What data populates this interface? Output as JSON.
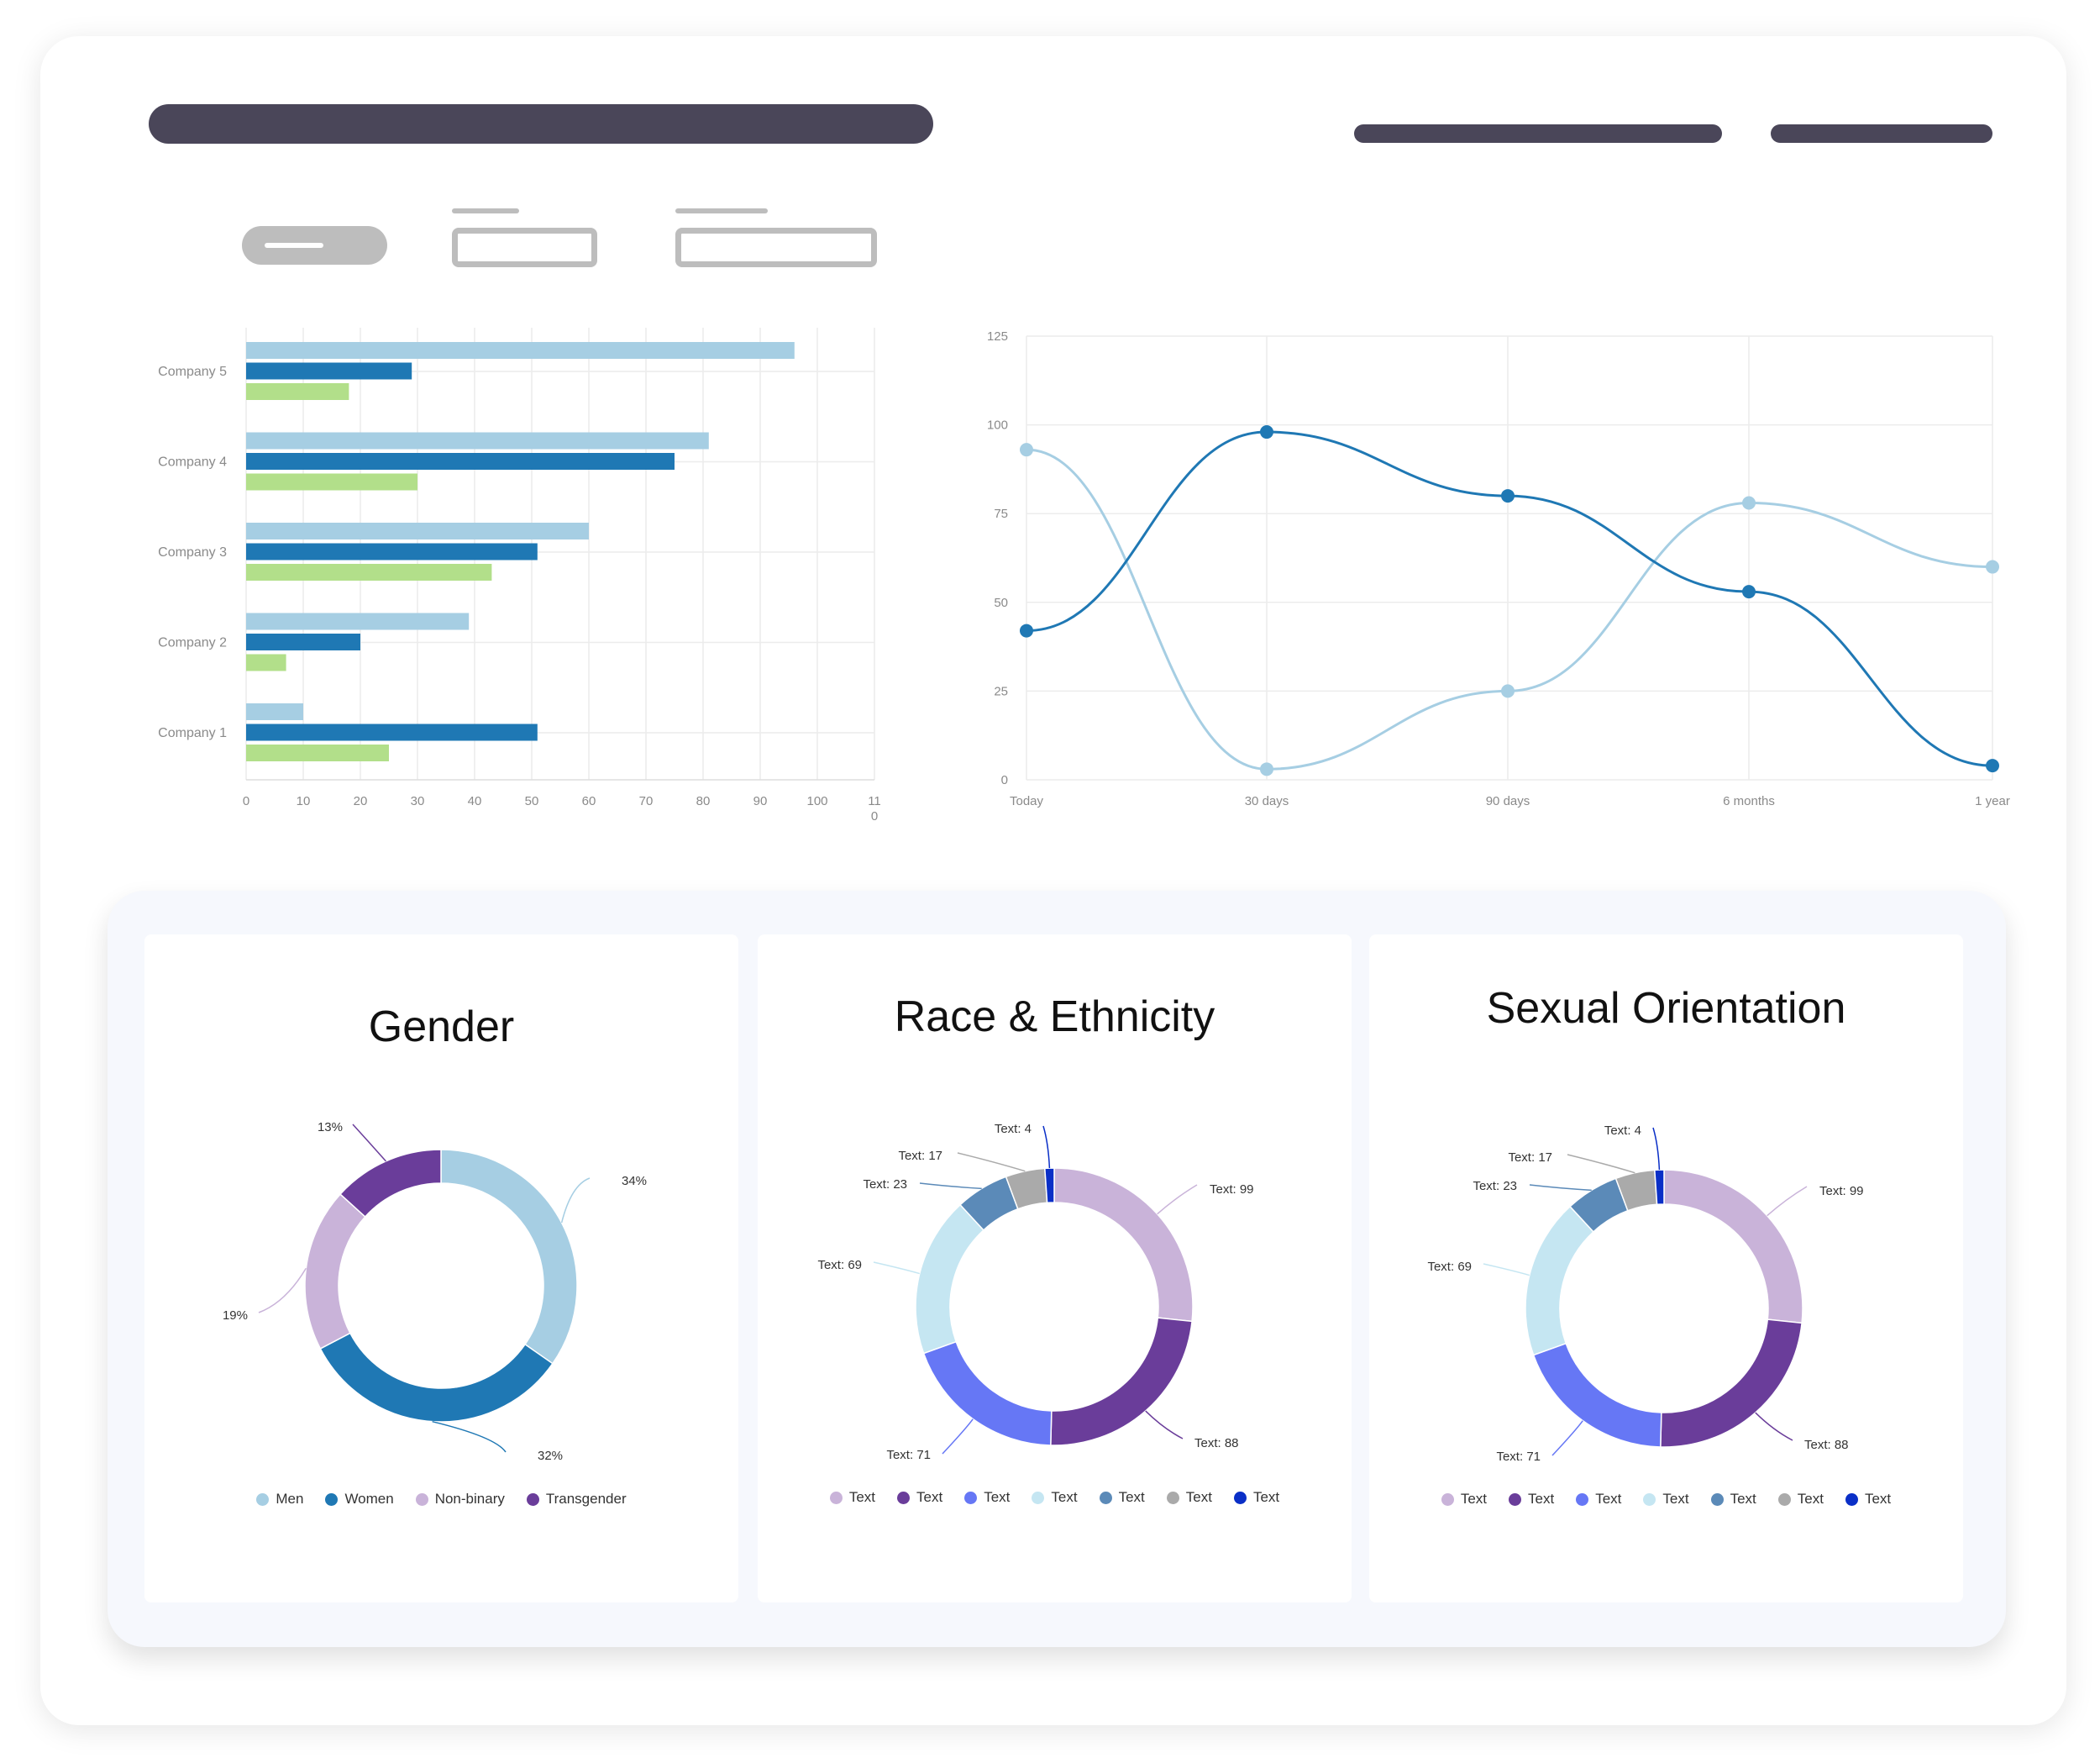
{
  "charts": {
    "bar_chart": {
      "type": "bar",
      "orientation": "horizontal",
      "categories": [
        "Company 5",
        "Company 4",
        "Company 3",
        "Company 2",
        "Company 1"
      ],
      "series": [
        {
          "color": "#a6cee3",
          "values": [
            96,
            81,
            60,
            39,
            10
          ]
        },
        {
          "color": "#1f78b4",
          "values": [
            29,
            75,
            51,
            20,
            51
          ]
        },
        {
          "color": "#b2df8a",
          "values": [
            18,
            30,
            43,
            7,
            25
          ]
        }
      ],
      "x_ticks": [
        "0",
        "10",
        "20",
        "30",
        "40",
        "50",
        "60",
        "70",
        "80",
        "90",
        "100",
        "11"
      ],
      "x_tick_extra": "0",
      "xlim": [
        0,
        110
      ],
      "grid": true
    },
    "line_chart": {
      "type": "line",
      "x": [
        "Today",
        "30 days",
        "90 days",
        "6 months",
        "1 year"
      ],
      "y_ticks": [
        "125",
        "100",
        "75",
        "50",
        "25",
        "0"
      ],
      "ylim": [
        0,
        125
      ],
      "series": [
        {
          "color": "#a6cee3",
          "values": [
            93,
            3,
            25,
            78,
            60
          ]
        },
        {
          "color": "#1f78b4",
          "values": [
            42,
            98,
            80,
            53,
            4
          ]
        }
      ],
      "grid": true
    }
  },
  "chart_data": [
    {
      "type": "bar",
      "categories": [
        "Company 5",
        "Company 4",
        "Company 3",
        "Company 2",
        "Company 1"
      ],
      "series": [
        {
          "values": [
            96,
            81,
            60,
            39,
            10
          ]
        },
        {
          "values": [
            29,
            75,
            51,
            20,
            51
          ]
        },
        {
          "values": [
            18,
            30,
            43,
            7,
            25
          ]
        }
      ],
      "xlim": [
        0,
        110
      ]
    },
    {
      "type": "line",
      "x": [
        "Today",
        "30 days",
        "90 days",
        "6 months",
        "1 year"
      ],
      "series": [
        {
          "values": [
            93,
            3,
            25,
            78,
            60
          ]
        },
        {
          "values": [
            42,
            98,
            80,
            53,
            4
          ]
        }
      ],
      "ylim": [
        0,
        125
      ]
    },
    {
      "type": "pie",
      "title": "Gender",
      "categories": [
        "Men",
        "Women",
        "Non-binary",
        "Transgender"
      ],
      "values": [
        34,
        32,
        19,
        13
      ]
    },
    {
      "type": "pie",
      "title": "Race & Ethnicity",
      "categories": [
        "Text",
        "Text",
        "Text",
        "Text",
        "Text",
        "Text",
        "Text"
      ],
      "values": [
        99,
        88,
        71,
        69,
        23,
        17,
        4
      ]
    },
    {
      "type": "pie",
      "title": "Sexual Orientation",
      "categories": [
        "Text",
        "Text",
        "Text",
        "Text",
        "Text",
        "Text",
        "Text"
      ],
      "values": [
        99,
        88,
        71,
        69,
        23,
        17,
        4
      ]
    }
  ],
  "panels": {
    "gender": {
      "title": "Gender",
      "segments": [
        {
          "name": "Men",
          "value": 34,
          "label": "34%",
          "color": "#a6cee3"
        },
        {
          "name": "Women",
          "value": 32,
          "label": "32%",
          "color": "#1f78b4"
        },
        {
          "name": "Non-binary",
          "value": 19,
          "label": "19%",
          "color": "#c9b3d9"
        },
        {
          "name": "Transgender",
          "value": 13,
          "label": "13%",
          "color": "#6a3d9a"
        }
      ]
    },
    "race": {
      "title": "Race & Ethnicity",
      "segments": [
        {
          "name": "Text",
          "value": 99,
          "label": "Text: 99",
          "color": "#c9b3d9"
        },
        {
          "name": "Text",
          "value": 88,
          "label": "Text: 88",
          "color": "#6a3d9a"
        },
        {
          "name": "Text",
          "value": 71,
          "label": "Text: 71",
          "color": "#6677f5"
        },
        {
          "name": "Text",
          "value": 69,
          "label": "Text: 69",
          "color": "#c5e6f2"
        },
        {
          "name": "Text",
          "value": 23,
          "label": "Text: 23",
          "color": "#5b8ab8"
        },
        {
          "name": "Text",
          "value": 17,
          "label": "Text: 17",
          "color": "#aaaaaa"
        },
        {
          "name": "Text",
          "value": 4,
          "label": "Text: 4",
          "color": "#0a2fc7"
        }
      ]
    },
    "orientation": {
      "title": "Sexual Orientation",
      "segments": [
        {
          "name": "Text",
          "value": 99,
          "label": "Text: 99",
          "color": "#c9b3d9"
        },
        {
          "name": "Text",
          "value": 88,
          "label": "Text: 88",
          "color": "#6a3d9a"
        },
        {
          "name": "Text",
          "value": 71,
          "label": "Text: 71",
          "color": "#6677f5"
        },
        {
          "name": "Text",
          "value": 69,
          "label": "Text: 69",
          "color": "#c5e6f2"
        },
        {
          "name": "Text",
          "value": 23,
          "label": "Text: 23",
          "color": "#5b8ab8"
        },
        {
          "name": "Text",
          "value": 17,
          "label": "Text: 17",
          "color": "#aaaaaa"
        },
        {
          "name": "Text",
          "value": 4,
          "label": "Text: 4",
          "color": "#0a2fc7"
        }
      ]
    }
  }
}
